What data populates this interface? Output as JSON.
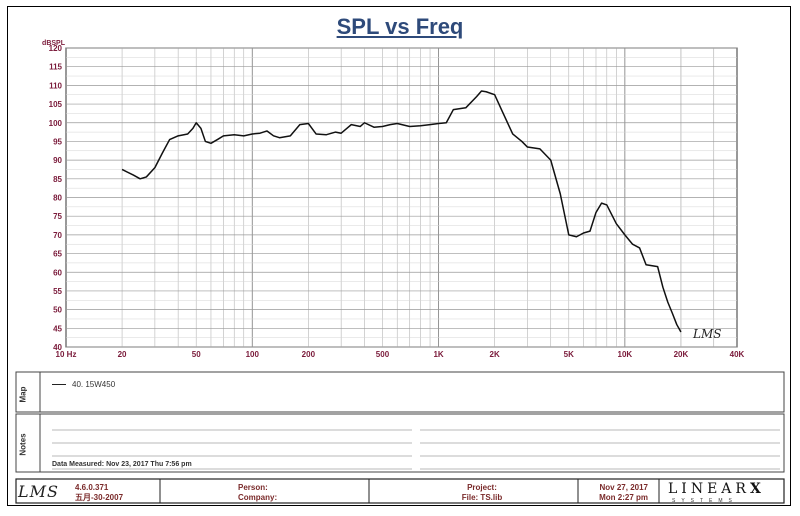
{
  "title": "SPL vs Freq",
  "footer": {
    "version_line1": "4.6.0.371",
    "version_line2": "五月-30-2007",
    "person": "Person:",
    "company": "Company:",
    "project": "Project:",
    "file": "File: TS.lib",
    "date": "Nov 27, 2017",
    "time": "Mon  2:27 pm",
    "brand": "LINEAR",
    "brand_x": "X",
    "brand_sub": "SYSTEMS",
    "lms_logo": "LMS"
  },
  "side_labels": {
    "map": "Map",
    "notes": "Notes"
  },
  "legend_entry": "40.  15W450",
  "data_measured": "Data Measured: Nov 23, 2017  Thu  7:56 pm",
  "watermark": "LMS",
  "colors": {
    "title": "#2e4a7a",
    "tick_x": "#7a1a3a",
    "grid": "#b5b5b5",
    "curve": "#111111"
  },
  "chart_data": {
    "type": "line",
    "title": "SPL vs Freq",
    "ylabel": "dBSPL",
    "xlabel": "",
    "x_scale": "log",
    "xlim": [
      10,
      40000
    ],
    "ylim": [
      40,
      120
    ],
    "x_tick_labels": [
      "10  Hz",
      "20",
      "50",
      "100",
      "200",
      "500",
      "1K",
      "2K",
      "5K",
      "10K",
      "20K",
      "40K"
    ],
    "x_tick_values": [
      10,
      20,
      50,
      100,
      200,
      500,
      1000,
      2000,
      5000,
      10000,
      20000,
      40000
    ],
    "y_ticks": [
      40,
      45,
      50,
      55,
      60,
      65,
      70,
      75,
      80,
      85,
      90,
      95,
      100,
      105,
      110,
      115,
      120
    ],
    "grid": true,
    "series": [
      {
        "name": "40.  15W450",
        "x": [
          20,
          23,
          25,
          27,
          30,
          33,
          36,
          40,
          45,
          48,
          50,
          53,
          56,
          60,
          65,
          70,
          80,
          90,
          100,
          110,
          120,
          130,
          140,
          160,
          180,
          200,
          220,
          250,
          280,
          300,
          340,
          380,
          400,
          450,
          500,
          550,
          600,
          700,
          800,
          900,
          1000,
          1100,
          1200,
          1400,
          1600,
          1700,
          1800,
          2000,
          2200,
          2500,
          2800,
          3000,
          3500,
          4000,
          4500,
          5000,
          5500,
          6000,
          6500,
          7000,
          7500,
          8000,
          9000,
          10000,
          11000,
          12000,
          13000,
          15000,
          16000,
          17000,
          18000,
          19000,
          20000
        ],
        "y": [
          87.5,
          86,
          85,
          85.5,
          88,
          92,
          95.5,
          96.5,
          97,
          98.5,
          100,
          98.5,
          95,
          94.5,
          95.5,
          96.5,
          96.8,
          96.5,
          97,
          97.2,
          97.8,
          96.5,
          96,
          96.5,
          99.5,
          99.8,
          97,
          96.8,
          97.5,
          97.2,
          99.5,
          99,
          100,
          98.8,
          99,
          99.5,
          99.8,
          99,
          99.2,
          99.5,
          99.8,
          100,
          103.5,
          104,
          107,
          108.5,
          108.3,
          107.5,
          103,
          97,
          95,
          93.5,
          93,
          90,
          81,
          70,
          69.5,
          70.5,
          71,
          76,
          78.5,
          78,
          73,
          70,
          67.5,
          66.5,
          62,
          61.5,
          56,
          52,
          49,
          46,
          44
        ]
      }
    ]
  }
}
